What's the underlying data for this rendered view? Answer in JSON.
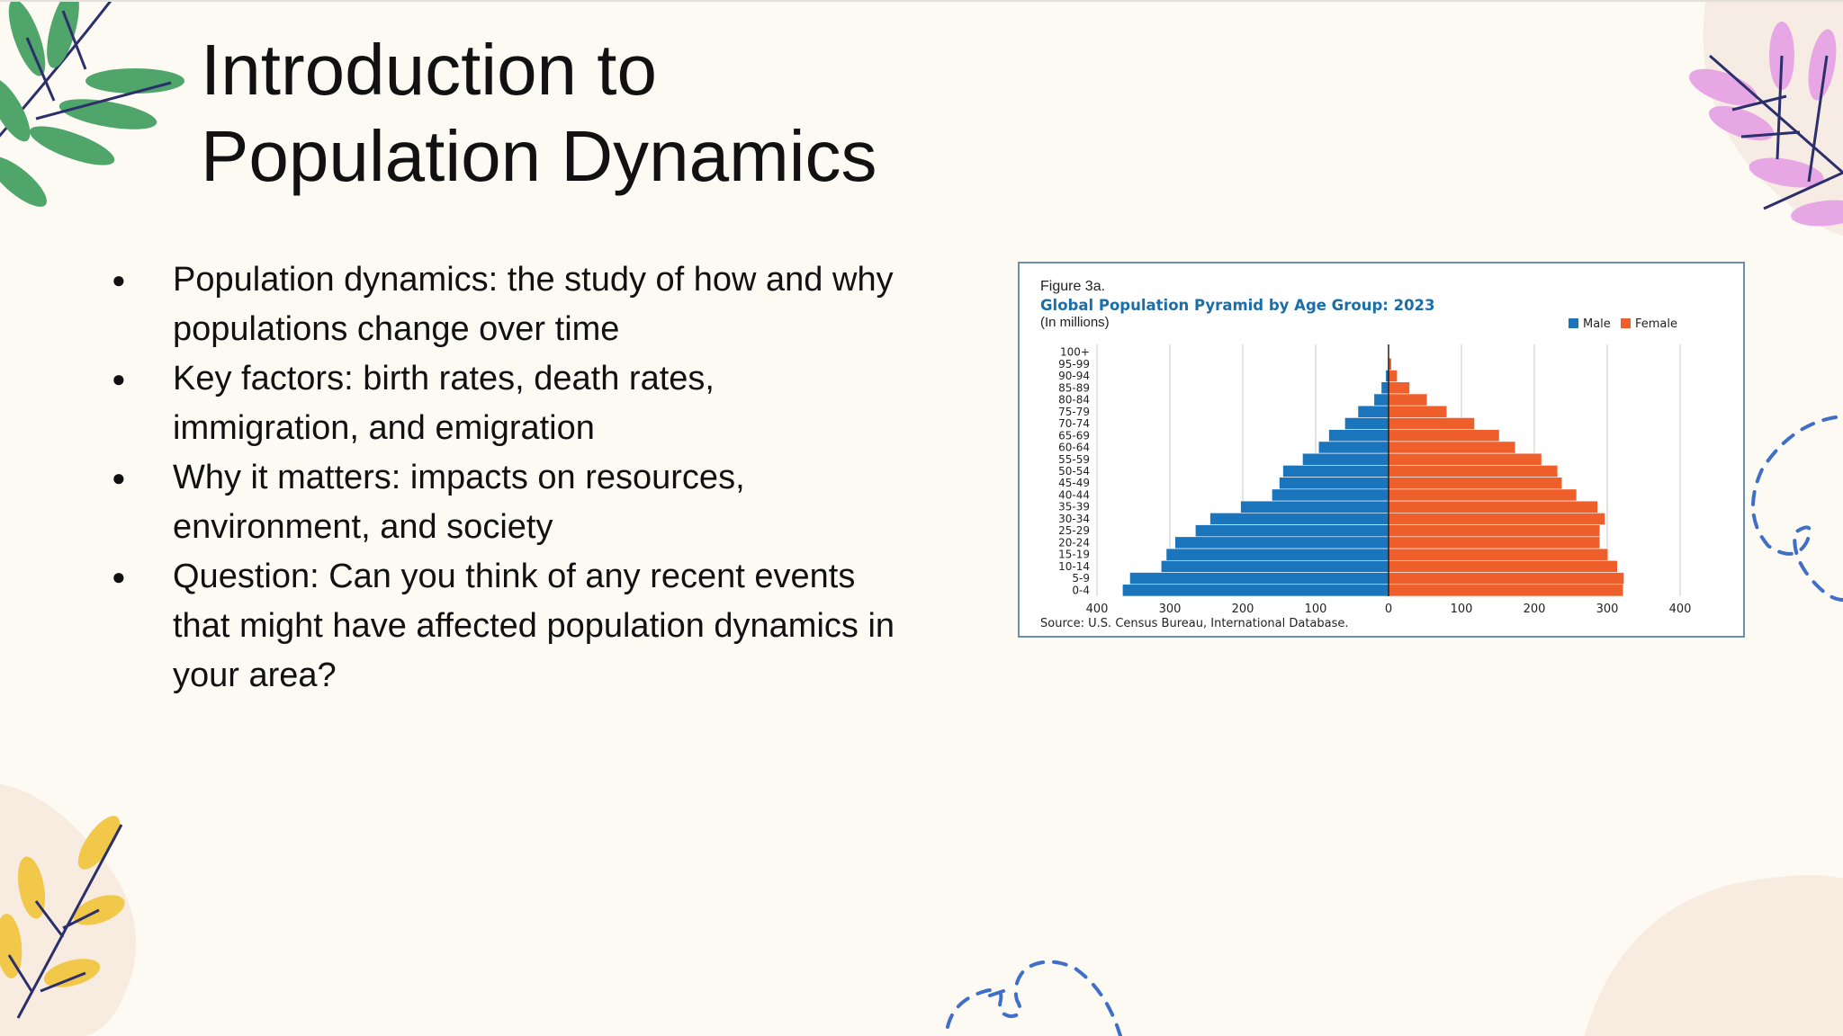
{
  "slide": {
    "title_lines": [
      "Introduction to",
      "Population Dynamics"
    ],
    "bullets": [
      "Population dynamics: the study of how and why populations change over time",
      "Key factors: birth rates, death rates, immigration, and emigration",
      "Why it matters: impacts on resources, environment, and society",
      "Question: Can you think of any recent events that might have affected population dynamics in your area?"
    ]
  },
  "chart_data": {
    "type": "bar",
    "figure_label": "Figure 3a.",
    "title": "Global Population Pyramid by Age Group: 2023",
    "subtitle": "(In millions)",
    "source": "Source: U.S. Census Bureau, International Database.",
    "orientation": "horizontal",
    "categories": [
      "100+",
      "95-99",
      "90-94",
      "85-89",
      "80-84",
      "75-79",
      "70-74",
      "65-69",
      "60-64",
      "55-59",
      "50-54",
      "45-49",
      "40-44",
      "35-39",
      "30-34",
      "25-29",
      "20-24",
      "15-19",
      "10-14",
      "5-9",
      "0-4"
    ],
    "series": [
      {
        "name": "Male",
        "color": "#1a75bc",
        "values": [
          0.3,
          1,
          4,
          10,
          20,
          42,
          60,
          82,
          96,
          118,
          145,
          150,
          160,
          203,
          245,
          265,
          293,
          305,
          312,
          355,
          365
        ]
      },
      {
        "name": "Female",
        "color": "#ef5f2c",
        "values": [
          0.6,
          4,
          12,
          29,
          53,
          80,
          118,
          152,
          174,
          210,
          232,
          238,
          258,
          287,
          297,
          290,
          290,
          301,
          314,
          323,
          322
        ]
      }
    ],
    "x_ticks": [
      "400",
      "300",
      "200",
      "100",
      "0",
      "100",
      "200",
      "300",
      "400"
    ],
    "xlim": [
      -400,
      400
    ],
    "grid": true,
    "legend_position": "top-right"
  },
  "colors": {
    "male": "#1a75bc",
    "female": "#ef5f2c",
    "chart_title": "#1b6ea8",
    "leaf_green": "#4fa56a",
    "leaf_pink": "#e7a6e4",
    "leaf_yellow": "#f2c84b",
    "dash_blue": "#3f6fc6"
  }
}
